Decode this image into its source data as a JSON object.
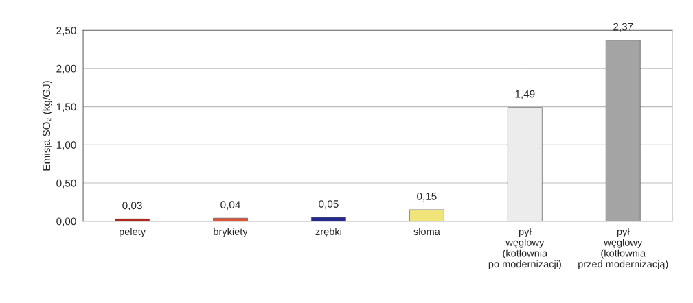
{
  "chart_data": {
    "type": "bar",
    "ylabel": "Emisja SO₂ (kg/GJ)",
    "categories": [
      "pelety",
      "brykiety",
      "zrębki",
      "słoma",
      "pył\nwęglowy\n(kotłownia\npo modernizacji)",
      "pył\nwęglowy\n(kotłownia\nprzed modernizacją)"
    ],
    "values": [
      0.03,
      0.04,
      0.05,
      0.15,
      1.49,
      2.37
    ],
    "colors": [
      "#b0281c",
      "#e0553a",
      "#232a8c",
      "#f0e47a",
      "#ececec",
      "#a4a4a4"
    ],
    "value_labels": [
      "0,03",
      "0,04",
      "0,05",
      "0,15",
      "1,49",
      "2,37"
    ],
    "ylim": [
      0,
      2.5
    ],
    "yticks": [
      {
        "value": 0,
        "label": "0,00"
      },
      {
        "value": 0.5,
        "label": "0,50"
      },
      {
        "value": 1,
        "label": "1,00"
      },
      {
        "value": 1.5,
        "label": "1,50"
      },
      {
        "value": 2,
        "label": "2,00"
      },
      {
        "value": 2.5,
        "label": "2,50"
      }
    ],
    "grid": "y",
    "legend": false
  }
}
